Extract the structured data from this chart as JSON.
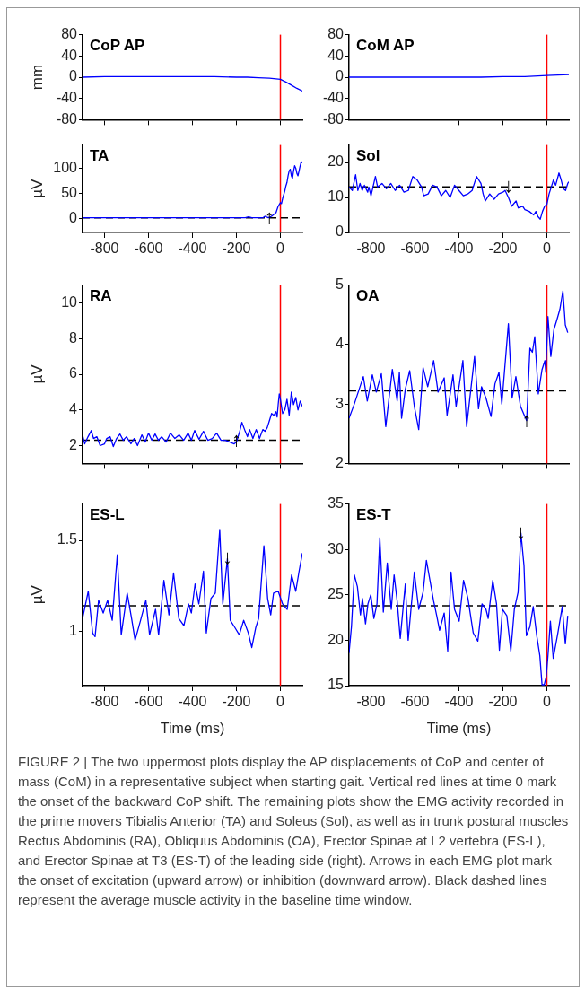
{
  "chart_data": [
    {
      "type": "line",
      "title": "CoP AP",
      "ylabel": "mm",
      "color": "#0000ff",
      "xlim": [
        -900,
        100
      ],
      "xticks": [
        -800,
        -600,
        -400,
        -200,
        0
      ],
      "ylim": [
        -80,
        80
      ],
      "yticks": [
        -80,
        -40,
        0,
        40,
        80
      ],
      "tick_labels": "y",
      "x": [
        -900,
        -800,
        -700,
        -600,
        -500,
        -400,
        -300,
        -200,
        -150,
        -100,
        -50,
        0,
        25,
        50,
        75,
        100
      ],
      "values": [
        0,
        1,
        1,
        1,
        1,
        1,
        1,
        0,
        0,
        -1,
        -2,
        -4,
        -9,
        -15,
        -21,
        -26
      ],
      "ref_lines": [
        {
          "axis": "x",
          "value": 0,
          "color": "#ff0000"
        }
      ]
    },
    {
      "type": "line",
      "title": "CoM AP",
      "color": "#0000ff",
      "xlim": [
        -900,
        100
      ],
      "xticks": [
        -800,
        -600,
        -400,
        -200,
        0
      ],
      "ylim": [
        -80,
        80
      ],
      "yticks": [
        -80,
        -40,
        0,
        40,
        80
      ],
      "tick_labels": "y",
      "x": [
        -900,
        -800,
        -700,
        -600,
        -500,
        -400,
        -300,
        -200,
        -100,
        0,
        50,
        100
      ],
      "values": [
        0,
        0,
        0,
        0,
        0,
        0,
        0,
        1,
        1,
        3,
        4,
        5
      ],
      "ref_lines": [
        {
          "axis": "x",
          "value": 0,
          "color": "#ff0000"
        }
      ]
    },
    {
      "type": "line",
      "title": "TA",
      "ylabel": "µV",
      "color": "#0000ff",
      "xlim": [
        -900,
        100
      ],
      "xticks": [
        -800,
        -600,
        -400,
        -200,
        0
      ],
      "ylim": [
        -27,
        146
      ],
      "yticks": [
        0,
        50,
        100
      ],
      "x": [
        -900,
        -600,
        -300,
        -160,
        -145,
        -130,
        -80,
        -70,
        -55,
        -40,
        -20,
        -10,
        0,
        5,
        10,
        20,
        25,
        30,
        35,
        40,
        45,
        50,
        55,
        60,
        65,
        70,
        75,
        80,
        90,
        95,
        100
      ],
      "values": [
        2,
        2,
        2,
        2,
        4,
        2,
        2,
        5,
        2,
        5,
        12,
        25,
        32,
        30,
        40,
        55,
        65,
        72,
        85,
        95,
        98,
        85,
        80,
        95,
        105,
        100,
        90,
        85,
        105,
        113,
        110
      ],
      "ref_lines": [
        {
          "axis": "x",
          "value": 0,
          "color": "#ff0000"
        },
        {
          "axis": "y",
          "value": 2,
          "color": "#000000",
          "line_style": "dashed"
        }
      ],
      "annotations": [
        {
          "text": "↑",
          "x": -50,
          "y": 2
        }
      ]
    },
    {
      "type": "line",
      "title": "Sol",
      "color": "#0000ff",
      "xlim": [
        -900,
        100
      ],
      "xticks": [
        -800,
        -600,
        -400,
        -200,
        0
      ],
      "ylim": [
        0,
        25
      ],
      "yticks": [
        0,
        10,
        20
      ],
      "x": [
        -900,
        -885,
        -870,
        -860,
        -850,
        -840,
        -830,
        -815,
        -810,
        -800,
        -780,
        -770,
        -750,
        -730,
        -710,
        -690,
        -670,
        -650,
        -630,
        -610,
        -590,
        -570,
        -560,
        -540,
        -520,
        -500,
        -480,
        -460,
        -440,
        -420,
        -400,
        -380,
        -360,
        -340,
        -320,
        -300,
        -290,
        -280,
        -260,
        -240,
        -220,
        -200,
        -190,
        -175,
        -160,
        -140,
        -130,
        -110,
        -100,
        -80,
        -60,
        -50,
        -40,
        -30,
        -20,
        -10,
        0,
        10,
        20,
        30,
        40,
        55,
        65,
        75,
        85,
        95,
        100
      ],
      "values": [
        13,
        12,
        16.5,
        12,
        14,
        12,
        13.5,
        11.5,
        13,
        10.5,
        16,
        13,
        14,
        12.5,
        14,
        12,
        13.5,
        11.5,
        12,
        16,
        15,
        13,
        10.5,
        11,
        13.5,
        13,
        10.5,
        12,
        10,
        13.5,
        12,
        10.5,
        11,
        12,
        16,
        14,
        11,
        9,
        11,
        9.5,
        11,
        11.5,
        12,
        10,
        7.5,
        9,
        7,
        7.5,
        6.5,
        6,
        5,
        6,
        4.5,
        3.8,
        6,
        7.5,
        8,
        11,
        13,
        15,
        13.5,
        17,
        15,
        12.5,
        12,
        14,
        14.5
      ],
      "ref_lines": [
        {
          "axis": "x",
          "value": 0,
          "color": "#ff0000"
        },
        {
          "axis": "y",
          "value": 13,
          "color": "#000000",
          "line_style": "dashed"
        }
      ],
      "annotations": [
        {
          "text": "↓",
          "x": -175,
          "y": 13
        }
      ]
    },
    {
      "type": "line",
      "title": "RA",
      "ylabel": "µV",
      "color": "#0000ff",
      "xlim": [
        -900,
        100
      ],
      "xticks": [
        -800,
        -600,
        -400,
        -200,
        0
      ],
      "ylim": [
        1,
        11
      ],
      "yticks": [
        2,
        4,
        6,
        8,
        10
      ],
      "tick_labels": "y",
      "x": [
        -900,
        -890,
        -875,
        -860,
        -850,
        -835,
        -820,
        -800,
        -790,
        -775,
        -760,
        -745,
        -730,
        -715,
        -700,
        -680,
        -665,
        -650,
        -630,
        -615,
        -600,
        -585,
        -570,
        -555,
        -540,
        -520,
        -500,
        -480,
        -460,
        -440,
        -420,
        -405,
        -390,
        -370,
        -350,
        -330,
        -310,
        -290,
        -270,
        -250,
        -230,
        -210,
        -200,
        -185,
        -175,
        -160,
        -150,
        -140,
        -125,
        -110,
        -95,
        -80,
        -70,
        -60,
        -50,
        -40,
        -30,
        -20,
        -15,
        -10,
        -5,
        0,
        10,
        20,
        30,
        40,
        50,
        60,
        70,
        80,
        90,
        100
      ],
      "values": [
        2.6,
        2.1,
        2.5,
        2.85,
        2.4,
        2.5,
        2.0,
        2.1,
        2.4,
        2.5,
        1.95,
        2.4,
        2.65,
        2.3,
        2.5,
        2.1,
        2.4,
        2.0,
        2.6,
        2.2,
        2.7,
        2.3,
        2.65,
        2.3,
        2.5,
        2.2,
        2.7,
        2.4,
        2.6,
        2.3,
        2.7,
        2.3,
        2.85,
        2.35,
        2.8,
        2.3,
        2.4,
        2.7,
        2.3,
        2.3,
        2.2,
        2.1,
        2.2,
        2.8,
        3.3,
        2.8,
        2.5,
        2.9,
        2.4,
        2.9,
        2.4,
        2.9,
        2.8,
        3.0,
        3.4,
        3.8,
        3.7,
        3.9,
        3.6,
        4.3,
        4.9,
        4.6,
        3.8,
        4.0,
        4.6,
        3.7,
        5.0,
        4.3,
        4.7,
        4.0,
        4.5,
        4.2
      ],
      "ref_lines": [
        {
          "axis": "x",
          "value": 0,
          "color": "#ff0000"
        },
        {
          "axis": "y",
          "value": 2.3,
          "color": "#000000",
          "line_style": "dashed"
        }
      ],
      "annotations": [
        {
          "text": "↑",
          "x": -200,
          "y": 2.3
        }
      ]
    },
    {
      "type": "line",
      "title": "OA",
      "color": "#0000ff",
      "xlim": [
        -900,
        100
      ],
      "xticks": [
        -800,
        -600,
        -400,
        -200,
        0
      ],
      "ylim": [
        2,
        5
      ],
      "yticks": [
        2,
        3,
        4,
        5
      ],
      "tick_labels": "y",
      "x": [
        -900,
        -876,
        -835,
        -817,
        -794,
        -776,
        -753,
        -733,
        -703,
        -681,
        -671,
        -661,
        -644,
        -624,
        -603,
        -583,
        -563,
        -542,
        -515,
        -495,
        -467,
        -454,
        -427,
        -413,
        -382,
        -365,
        -329,
        -311,
        -297,
        -277,
        -254,
        -236,
        -218,
        -205,
        -175,
        -158,
        -141,
        -120,
        -92,
        -77,
        -66,
        -55,
        -39,
        -22,
        -9,
        -5,
        5,
        18,
        32,
        46,
        59,
        73,
        84,
        95
      ],
      "values": [
        2.76,
        3.0,
        3.46,
        3.05,
        3.49,
        3.2,
        3.51,
        2.62,
        3.58,
        3.05,
        3.53,
        2.76,
        3.25,
        3.56,
        2.96,
        2.57,
        3.61,
        3.29,
        3.73,
        3.2,
        3.44,
        2.81,
        3.49,
        2.96,
        3.73,
        2.62,
        3.8,
        2.92,
        3.29,
        3.1,
        2.79,
        3.34,
        3.53,
        3.0,
        4.35,
        3.1,
        3.46,
        2.96,
        2.72,
        3.94,
        3.87,
        4.13,
        3.17,
        3.58,
        3.73,
        3.53,
        4.47,
        3.8,
        4.25,
        4.42,
        4.59,
        4.9,
        4.33,
        4.2
      ],
      "ref_lines": [
        {
          "axis": "x",
          "value": 0,
          "color": "#ff0000"
        },
        {
          "axis": "y",
          "value": 3.22,
          "color": "#000000",
          "line_style": "dashed"
        }
      ],
      "annotations": [
        {
          "text": "↑",
          "x": -92,
          "y": 2.72
        }
      ]
    },
    {
      "type": "line",
      "title": "ES-L",
      "xlabel": "Time (ms)",
      "ylabel": "µV",
      "color": "#0000ff",
      "xlim": [
        -900,
        100
      ],
      "xticks": [
        -800,
        -600,
        -400,
        -200,
        0
      ],
      "ylim": [
        0.7,
        1.7
      ],
      "yticks": [
        1,
        1.5
      ],
      "x": [
        -900,
        -874,
        -854,
        -843,
        -827,
        -806,
        -786,
        -765,
        -742,
        -724,
        -697,
        -677,
        -661,
        -636,
        -612,
        -595,
        -568,
        -554,
        -530,
        -507,
        -486,
        -462,
        -439,
        -418,
        -405,
        -388,
        -371,
        -350,
        -337,
        -316,
        -296,
        -276,
        -262,
        -241,
        -228,
        -207,
        -187,
        -167,
        -146,
        -130,
        -112,
        -99,
        -75,
        -58,
        -44,
        -31,
        -10,
        10,
        31,
        51,
        70,
        85,
        100
      ],
      "values": [
        1.07,
        1.22,
        0.99,
        0.97,
        1.17,
        1.1,
        1.17,
        1.06,
        1.42,
        0.98,
        1.21,
        1.07,
        0.95,
        1.06,
        1.17,
        0.98,
        1.12,
        0.98,
        1.28,
        1.09,
        1.32,
        1.07,
        1.03,
        1.15,
        1.1,
        1.26,
        1.15,
        1.33,
        0.99,
        1.18,
        1.21,
        1.56,
        1.15,
        1.4,
        1.06,
        1.02,
        0.98,
        1.06,
        0.99,
        0.91,
        1.02,
        1.07,
        1.47,
        1.18,
        1.09,
        1.21,
        1.22,
        1.15,
        1.12,
        1.31,
        1.22,
        1.33,
        1.43
      ],
      "ref_lines": [
        {
          "axis": "x",
          "value": 0,
          "color": "#ff0000"
        },
        {
          "axis": "y",
          "value": 1.14,
          "color": "#000000",
          "line_style": "dashed"
        }
      ],
      "annotations": [
        {
          "text": "↓",
          "x": -241,
          "y": 1.4
        }
      ]
    },
    {
      "type": "line",
      "title": "ES-T",
      "xlabel": "Time (ms)",
      "color": "#0000ff",
      "xlim": [
        -900,
        100
      ],
      "xticks": [
        -800,
        -600,
        -400,
        -200,
        0
      ],
      "ylim": [
        15,
        35
      ],
      "yticks": [
        15,
        20,
        25,
        30,
        35
      ],
      "x": [
        -900,
        -889,
        -876,
        -862,
        -848,
        -839,
        -825,
        -814,
        -801,
        -787,
        -773,
        -760,
        -744,
        -726,
        -708,
        -695,
        -681,
        -667,
        -644,
        -631,
        -603,
        -583,
        -563,
        -548,
        -529,
        -515,
        -501,
        -488,
        -467,
        -451,
        -436,
        -420,
        -399,
        -379,
        -359,
        -335,
        -314,
        -295,
        -277,
        -267,
        -246,
        -229,
        -216,
        -202,
        -182,
        -164,
        -148,
        -131,
        -118,
        -104,
        -93,
        -77,
        -62,
        -46,
        -32,
        -22,
        -12,
        -3,
        5,
        16,
        29,
        50,
        70,
        84,
        95
      ],
      "values": [
        18.6,
        21.5,
        27.2,
        25.9,
        22.8,
        24.6,
        21.8,
        24,
        25,
        22.4,
        24,
        31.3,
        23.1,
        28.5,
        23.4,
        27.2,
        24.3,
        20.2,
        26.2,
        20,
        27.5,
        23.4,
        25.3,
        28.8,
        26.2,
        24.3,
        22.7,
        21.1,
        23,
        18.8,
        27.5,
        23.4,
        22.1,
        26.6,
        24.6,
        20.8,
        19.9,
        24,
        23.4,
        22.4,
        26.6,
        24,
        18.9,
        23.4,
        22.7,
        18.8,
        23.4,
        25.3,
        31.8,
        28.2,
        20.5,
        21.5,
        23.7,
        20.5,
        18.3,
        15.1,
        15.1,
        16,
        18.3,
        22.1,
        18,
        20.8,
        23.7,
        19.6,
        22.7
      ],
      "ref_lines": [
        {
          "axis": "x",
          "value": 0,
          "color": "#ff0000"
        },
        {
          "axis": "y",
          "value": 23.8,
          "color": "#000000",
          "line_style": "dashed"
        }
      ],
      "annotations": [
        {
          "text": "↓",
          "x": -118,
          "y": 31.8
        },
        "FIGURE 2 | The two uppermost plots display the AP displacements of CoP and center of mass (CoM) in a representative subject when starting gait. Vertical red lines at time 0 mark the onset of the backward CoP shift. The remaining plots show the EMG activity recorded in the prime movers Tibialis Anterior (TA) and Soleus (Sol), as well as in trunk postural muscles Rectus Abdominis (RA), Obliquus Abdominis (OA), Erector Spinae at L2 vertebra (ES-L), and Erector Spinae at T3 (ES-T) of the leading side (right). Arrows in each EMG plot mark the onset of excitation (upward arrow) or inhibition (downward arrow). Black dashed lines represent the average muscle activity in the baseline time window."
      ]
    }
  ]
}
